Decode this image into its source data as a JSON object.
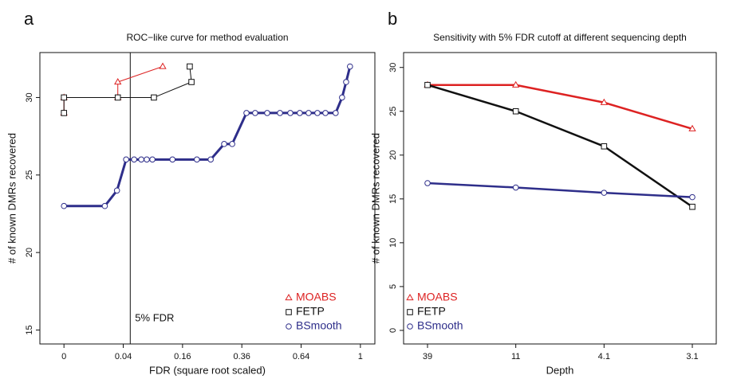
{
  "chart_data": [
    {
      "type": "line",
      "panel_label": "a",
      "title": "ROC−like curve for method evaluation",
      "x_label": "FDR (square root scaled)",
      "y_label": "# of known DMRs recovered",
      "x_scale": "sqrt",
      "xlim": [
        -0.0066,
        1.1
      ],
      "xticks": [
        0,
        0.04,
        0.16,
        0.36,
        0.64,
        1
      ],
      "ylim": [
        14.1,
        32.9
      ],
      "yticks": [
        15,
        20,
        25,
        30
      ],
      "legend": "bottom-right",
      "annotations": [
        {
          "x": 0.05,
          "text": "5% FDR"
        }
      ],
      "series": [
        {
          "name": "MOABS",
          "color": "#dd2222",
          "marker": "triangle",
          "linewidth": 1,
          "x": [
            0,
            0,
            0.033,
            0.033,
            0.111
          ],
          "values": [
            29,
            30,
            30,
            31,
            32
          ]
        },
        {
          "name": "FETP",
          "color": "#111111",
          "marker": "square",
          "linewidth": 1,
          "x": [
            0,
            0,
            0.033,
            0.092,
            0.185,
            0.18
          ],
          "values": [
            29,
            30,
            30,
            30,
            31,
            32
          ]
        },
        {
          "name": "BSmooth",
          "color": "#2e2e8a",
          "marker": "circle",
          "linewidth": 3,
          "x": [
            0,
            0.019,
            0.032,
            0.044,
            0.056,
            0.068,
            0.078,
            0.089,
            0.134,
            0.201,
            0.245,
            0.292,
            0.322,
            0.379,
            0.416,
            0.47,
            0.531,
            0.583,
            0.633,
            0.681,
            0.731,
            0.778,
            0.84,
            0.88,
            0.906,
            0.931
          ],
          "values": [
            23,
            23,
            24,
            26,
            26,
            26,
            26,
            26,
            26,
            26,
            26,
            27,
            27,
            29,
            29,
            29,
            29,
            29,
            29,
            29,
            29,
            29,
            29,
            30,
            31,
            32
          ]
        }
      ]
    },
    {
      "type": "line",
      "panel_label": "b",
      "title": "Sensitivity with 5% FDR cutoff at different sequencing depth",
      "x_label": "Depth",
      "y_label": "# of known DMRs recovered",
      "categories": [
        "39",
        "11",
        "4.1",
        "3.1"
      ],
      "ylim": [
        -1.55,
        31.7
      ],
      "yticks": [
        0,
        5,
        10,
        15,
        20,
        25,
        30
      ],
      "legend": "bottom-left",
      "series": [
        {
          "name": "MOABS",
          "color": "#dd2222",
          "marker": "triangle",
          "linewidth": 2.5,
          "values": [
            28,
            28,
            26,
            23
          ]
        },
        {
          "name": "FETP",
          "color": "#111111",
          "marker": "square",
          "linewidth": 2.5,
          "values": [
            28,
            25,
            21,
            14.1
          ]
        },
        {
          "name": "BSmooth",
          "color": "#2e2e8a",
          "marker": "circle",
          "linewidth": 2.5,
          "values": [
            16.8,
            16.3,
            15.7,
            15.2
          ]
        }
      ]
    }
  ]
}
